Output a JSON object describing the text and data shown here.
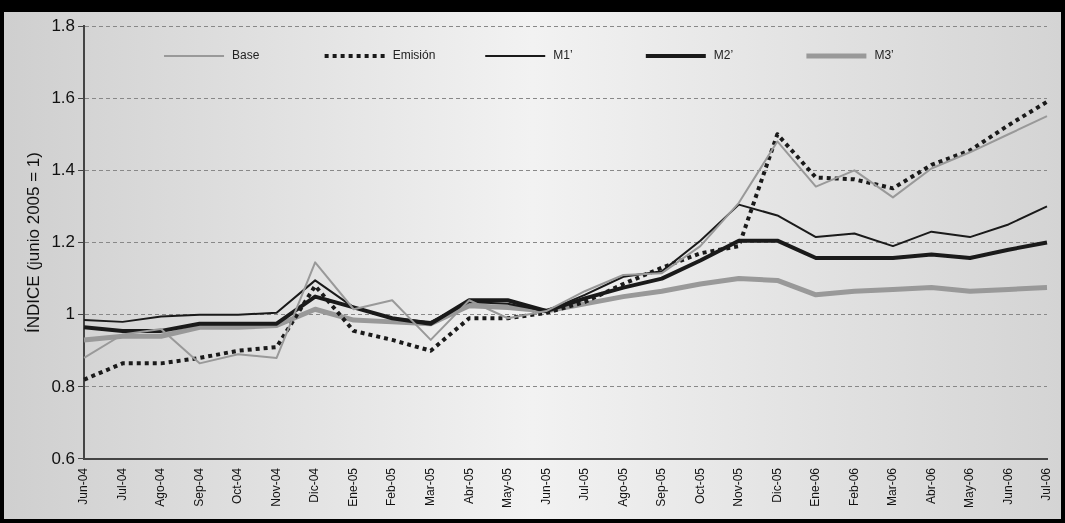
{
  "chart_data": {
    "type": "line",
    "ylabel": "ÍNDICE (junio 2005 = 1)",
    "categories": [
      "Jun-04",
      "Jul-04",
      "Ago-04",
      "Sep-04",
      "Oct-04",
      "Nov-04",
      "Dic-04",
      "Ene-05",
      "Feb-05",
      "Mar-05",
      "Abr-05",
      "May-05",
      "Jun-05",
      "Jul-05",
      "Ago-05",
      "Sep-05",
      "Oct-05",
      "Nov-05",
      "Dic-05",
      "Ene-06",
      "Feb-06",
      "Mar-06",
      "Abr-06",
      "May-06",
      "Jun-06",
      "Jul-06"
    ],
    "series": [
      {
        "name": "Base",
        "color": "#999999",
        "line_style": "solid",
        "values": [
          0.88,
          0.945,
          0.96,
          0.865,
          0.89,
          0.88,
          1.145,
          1.015,
          1.04,
          0.93,
          1.04,
          0.99,
          1.01,
          1.065,
          1.11,
          1.115,
          1.19,
          1.31,
          1.48,
          1.355,
          1.4,
          1.325,
          1.405,
          1.45,
          1.5,
          1.55
        ]
      },
      {
        "name": "Emisión",
        "color": "#1a1a1a",
        "line_style": "dotted",
        "values": [
          0.82,
          0.865,
          0.865,
          0.88,
          0.9,
          0.91,
          1.08,
          0.955,
          0.93,
          0.9,
          0.99,
          0.99,
          1.005,
          1.035,
          1.085,
          1.13,
          1.17,
          1.19,
          1.5,
          1.38,
          1.375,
          1.35,
          1.415,
          1.455,
          1.525,
          1.59
        ]
      },
      {
        "name": "M1’",
        "color": "#1a1a1a",
        "line_style": "solid",
        "values": [
          0.985,
          0.98,
          0.995,
          1.0,
          1.0,
          1.005,
          1.095,
          1.02,
          0.99,
          0.98,
          1.035,
          1.03,
          1.01,
          1.055,
          1.105,
          1.12,
          1.205,
          1.305,
          1.275,
          1.215,
          1.225,
          1.19,
          1.23,
          1.215,
          1.25,
          1.3
        ]
      },
      {
        "name": "M2’",
        "color": "#1a1a1a",
        "line_style": "solid",
        "values": [
          0.965,
          0.955,
          0.955,
          0.975,
          0.975,
          0.975,
          1.05,
          1.02,
          0.99,
          0.975,
          1.04,
          1.04,
          1.01,
          1.045,
          1.075,
          1.1,
          1.15,
          1.205,
          1.205,
          1.157,
          1.157,
          1.157,
          1.167,
          1.157,
          1.18,
          1.2
        ]
      },
      {
        "name": "M3’",
        "color": "#999999",
        "line_style": "solid",
        "values": [
          0.93,
          0.94,
          0.94,
          0.965,
          0.965,
          0.97,
          1.015,
          0.985,
          0.98,
          0.975,
          1.025,
          1.02,
          1.01,
          1.03,
          1.05,
          1.065,
          1.085,
          1.1,
          1.095,
          1.055,
          1.065,
          1.07,
          1.075,
          1.065,
          1.07,
          1.075
        ]
      }
    ],
    "ylim": [
      0.6,
      1.8
    ],
    "yticks": [
      0.6,
      0.8,
      1,
      1.2,
      1.4,
      1.6,
      1.8
    ],
    "grid": "y",
    "legend": "top",
    "marker": "none"
  }
}
